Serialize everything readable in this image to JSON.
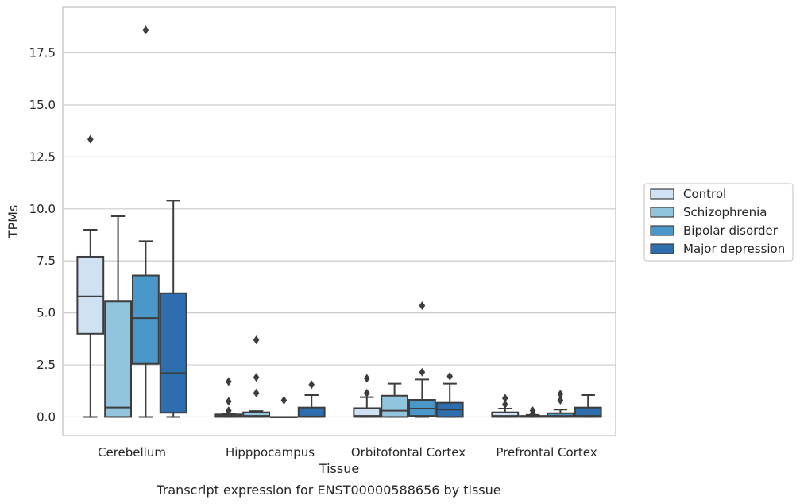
{
  "chart_data": {
    "type": "boxplot",
    "title": "Transcript expression for ENST00000588656 by tissue",
    "xlabel": "Tissue",
    "ylabel": "TPMs",
    "ylim": [
      -0.9,
      19.7
    ],
    "yticks": [
      "0.0",
      "2.5",
      "5.0",
      "7.5",
      "10.0",
      "12.5",
      "15.0",
      "17.5"
    ],
    "grid": true,
    "legend_position": "right",
    "categories": [
      "Cerebellum",
      "Hipppocampus",
      "Orbitofontal Cortex",
      "Prefrontal Cortex"
    ],
    "series": [
      {
        "name": "Control",
        "color": "#cfe1f2",
        "boxes": [
          {
            "whislo": 0.0,
            "q1": 4.0,
            "med": 5.8,
            "q3": 7.7,
            "whishi": 9.0,
            "fliers": [
              13.35
            ]
          },
          {
            "whislo": 0.0,
            "q1": 0.0,
            "med": 0.05,
            "q3": 0.12,
            "whishi": 0.15,
            "fliers": [
              0.3,
              0.75,
              1.7
            ]
          },
          {
            "whislo": 0.0,
            "q1": 0.0,
            "med": 0.05,
            "q3": 0.42,
            "whishi": 0.95,
            "fliers": [
              1.15,
              1.85
            ]
          },
          {
            "whislo": 0.0,
            "q1": 0.0,
            "med": 0.05,
            "q3": 0.22,
            "whishi": 0.4,
            "fliers": [
              0.6,
              0.9
            ]
          }
        ]
      },
      {
        "name": "Schizophrenia",
        "color": "#93c4de",
        "boxes": [
          {
            "whislo": 0.0,
            "q1": 0.0,
            "med": 0.45,
            "q3": 5.55,
            "whishi": 9.65,
            "fliers": []
          },
          {
            "whislo": 0.0,
            "q1": 0.0,
            "med": 0.05,
            "q3": 0.22,
            "whishi": 0.28,
            "fliers": [
              1.15,
              1.9,
              3.7
            ]
          },
          {
            "whislo": 0.0,
            "q1": 0.0,
            "med": 0.3,
            "q3": 1.02,
            "whishi": 1.6,
            "fliers": []
          },
          {
            "whislo": 0.0,
            "q1": 0.0,
            "med": 0.02,
            "q3": 0.05,
            "whishi": 0.1,
            "fliers": [
              0.15,
              0.3
            ]
          }
        ]
      },
      {
        "name": "Bipolar disorder",
        "color": "#4a98c9",
        "boxes": [
          {
            "whislo": 0.0,
            "q1": 2.55,
            "med": 4.75,
            "q3": 6.8,
            "whishi": 8.45,
            "fliers": [
              18.6
            ]
          },
          {
            "whislo": 0.0,
            "q1": 0.0,
            "med": 0.0,
            "q3": 0.0,
            "whishi": 0.0,
            "fliers": [
              0.8
            ]
          },
          {
            "whislo": 0.0,
            "q1": 0.05,
            "med": 0.4,
            "q3": 0.82,
            "whishi": 1.8,
            "fliers": [
              2.15,
              5.35
            ]
          },
          {
            "whislo": 0.0,
            "q1": 0.0,
            "med": 0.05,
            "q3": 0.18,
            "whishi": 0.35,
            "fliers": [
              0.8,
              1.1
            ]
          }
        ]
      },
      {
        "name": "Major depression",
        "color": "#2e6eae",
        "boxes": [
          {
            "whislo": 0.0,
            "q1": 0.2,
            "med": 2.1,
            "q3": 5.95,
            "whishi": 10.4,
            "fliers": []
          },
          {
            "whislo": 0.0,
            "q1": 0.0,
            "med": 0.02,
            "q3": 0.45,
            "whishi": 1.05,
            "fliers": [
              1.55
            ]
          },
          {
            "whislo": 0.0,
            "q1": 0.0,
            "med": 0.35,
            "q3": 0.68,
            "whishi": 1.6,
            "fliers": [
              1.95
            ]
          },
          {
            "whislo": 0.0,
            "q1": 0.0,
            "med": 0.05,
            "q3": 0.45,
            "whishi": 1.05,
            "fliers": []
          }
        ]
      }
    ]
  }
}
